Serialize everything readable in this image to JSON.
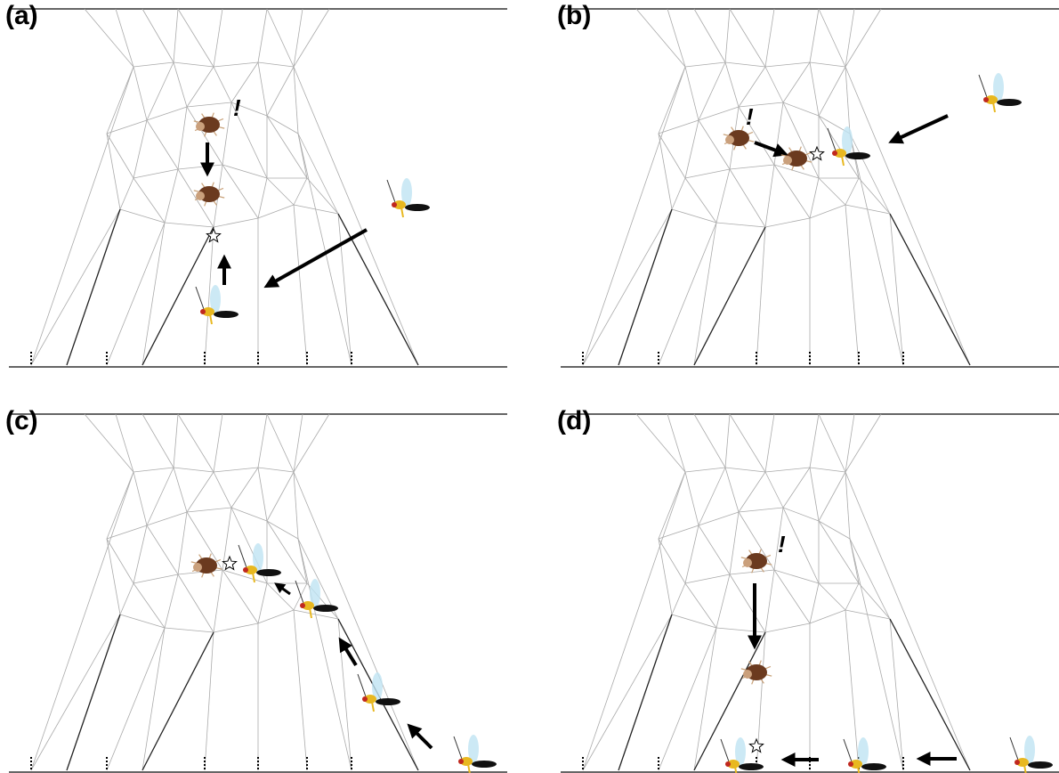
{
  "panels": [
    {
      "label": "(a)",
      "alert": "!"
    },
    {
      "label": "(b)",
      "alert": "!"
    },
    {
      "label": "(c)"
    },
    {
      "label": "(d)",
      "alert": "!"
    }
  ]
}
